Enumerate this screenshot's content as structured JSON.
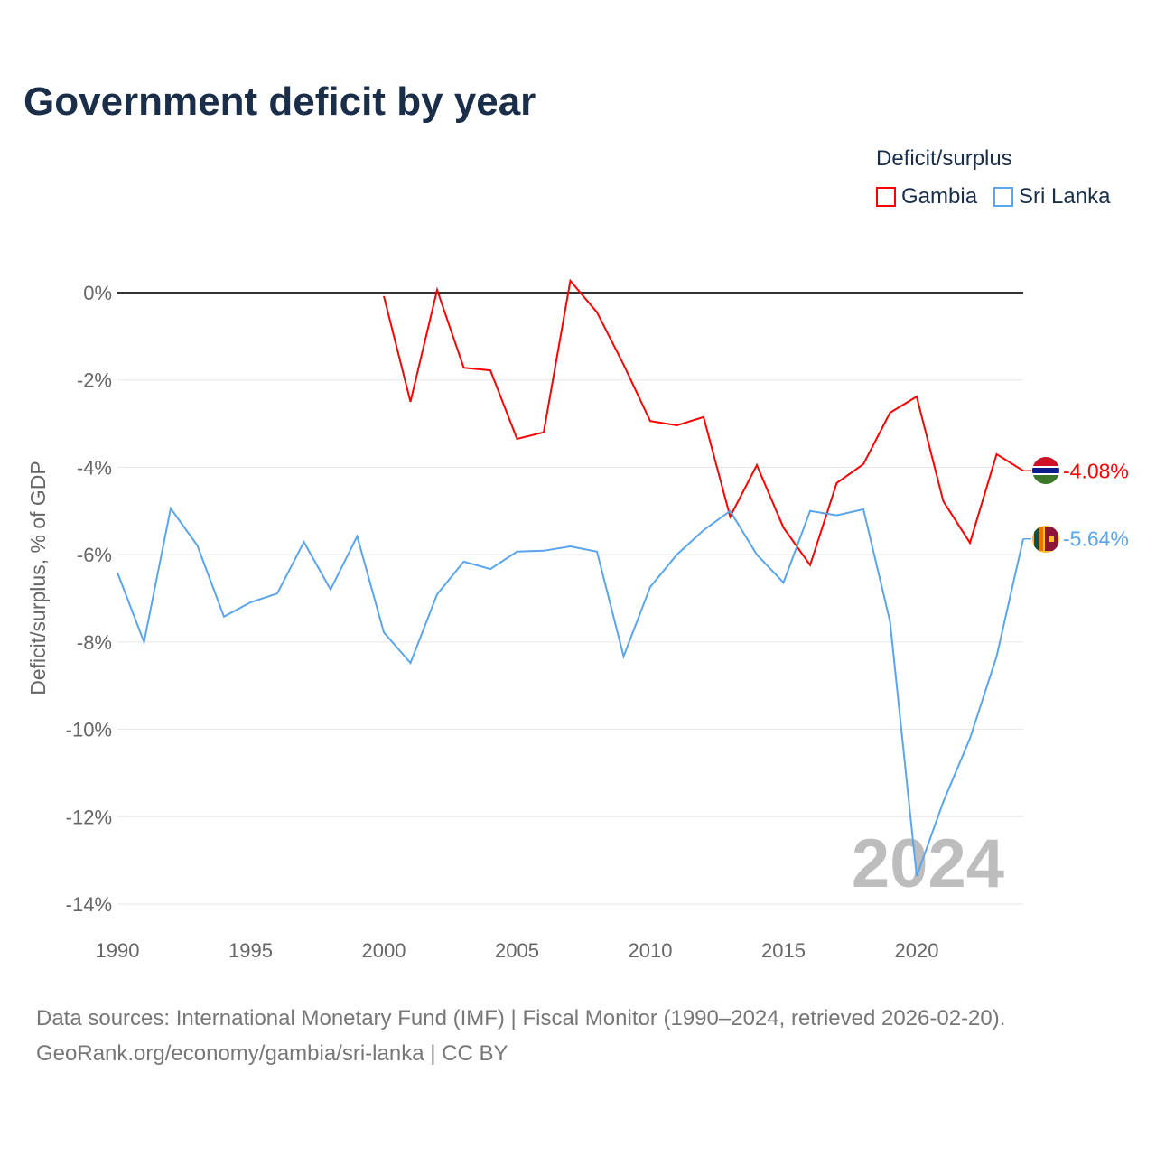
{
  "title": "Government deficit by year",
  "legend": {
    "title": "Deficit/surplus",
    "items": [
      {
        "name": "Gambia",
        "color": "#ff0000"
      },
      {
        "name": "Sri Lanka",
        "color": "#5aa5eb"
      }
    ]
  },
  "footer": {
    "line1": "Data sources: International Monetary Fund (IMF) | Fiscal Monitor (1990–2024, retrieved 2026-02-20).",
    "line2": "GeoRank.org/economy/gambia/sri-lanka | CC BY"
  },
  "chart_data": {
    "type": "line",
    "title": "Government deficit by year",
    "xlabel": "",
    "ylabel": "Deficit/surplus, % of GDP",
    "xlim": [
      1990,
      2024
    ],
    "ylim": [
      -14,
      0
    ],
    "x_ticks": [
      "1990",
      "1995",
      "2000",
      "2005",
      "2010",
      "2015",
      "2020"
    ],
    "y_ticks": [
      "0%",
      "-2%",
      "-4%",
      "-6%",
      "-8%",
      "-10%",
      "-12%",
      "-14%"
    ],
    "watermark_year": "2024",
    "series": [
      {
        "name": "Gambia",
        "color": "#ff0000",
        "end_label": "-4.08%",
        "x": [
          2000,
          2001,
          2002,
          2003,
          2004,
          2005,
          2006,
          2007,
          2008,
          2009,
          2010,
          2011,
          2012,
          2013,
          2014,
          2015,
          2016,
          2017,
          2018,
          2019,
          2020,
          2021,
          2022,
          2023,
          2024
        ],
        "values": [
          -0.08,
          -2.5,
          0.06,
          -1.72,
          -1.78,
          -3.35,
          -3.2,
          0.27,
          -0.45,
          -1.65,
          -2.94,
          -3.04,
          -2.85,
          -5.13,
          -3.95,
          -5.38,
          -6.24,
          -4.36,
          -3.93,
          -2.75,
          -2.38,
          -4.78,
          -5.73,
          -3.7,
          -4.08
        ]
      },
      {
        "name": "Sri Lanka",
        "color": "#5aa5eb",
        "end_label": "-5.64%",
        "x": [
          1990,
          1991,
          1992,
          1993,
          1994,
          1995,
          1996,
          1997,
          1998,
          1999,
          2000,
          2001,
          2002,
          2003,
          2004,
          2005,
          2006,
          2007,
          2008,
          2009,
          2010,
          2011,
          2012,
          2013,
          2014,
          2015,
          2016,
          2017,
          2018,
          2019,
          2020,
          2021,
          2022,
          2023,
          2024
        ],
        "values": [
          -6.41,
          -8.0,
          -4.94,
          -5.79,
          -7.42,
          -7.09,
          -6.89,
          -5.71,
          -6.8,
          -5.58,
          -7.78,
          -8.48,
          -6.91,
          -6.16,
          -6.33,
          -5.93,
          -5.91,
          -5.81,
          -5.93,
          -8.33,
          -6.74,
          -6.0,
          -5.44,
          -5.0,
          -6.0,
          -6.64,
          -5.0,
          -5.1,
          -4.96,
          -7.53,
          -13.36,
          -11.66,
          -10.21,
          -8.33,
          -5.64
        ]
      }
    ]
  }
}
